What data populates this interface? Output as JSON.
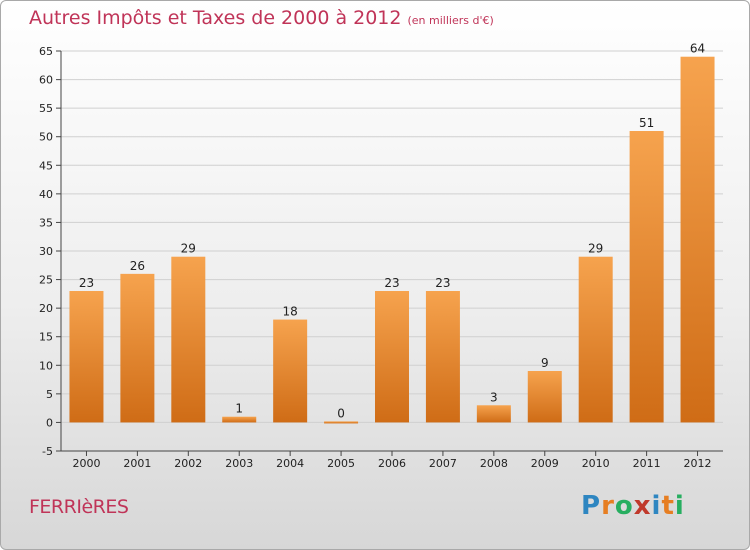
{
  "title": {
    "main": "Autres Impôts et Taxes de 2000 à 2012",
    "unit": "(en milliers d'€)"
  },
  "town": "FERRIèRES",
  "logo": {
    "letters": [
      "P",
      "r",
      "o",
      "x",
      "i",
      "t",
      "i"
    ],
    "colors": [
      "#2e86c1",
      "#e67e22",
      "#27ae60",
      "#c0392b",
      "#2e86c1",
      "#e67e22",
      "#27ae60"
    ]
  },
  "chart_data": {
    "type": "bar",
    "categories": [
      "2000",
      "2001",
      "2002",
      "2003",
      "2004",
      "2005",
      "2006",
      "2007",
      "2008",
      "2009",
      "2010",
      "2011",
      "2012"
    ],
    "values": [
      23,
      26,
      29,
      1,
      18,
      0,
      23,
      23,
      3,
      9,
      29,
      51,
      64
    ],
    "data_labels": [
      "23",
      "26",
      "29",
      "1",
      "18",
      "0",
      "23",
      "23",
      "3",
      "9",
      "29",
      "51",
      "64"
    ],
    "title": "Autres Impôts et Taxes de 2000 à 2012",
    "xlabel": "",
    "ylabel": "",
    "ylim": [
      -5,
      65
    ],
    "yticks": [
      -5,
      0,
      5,
      10,
      15,
      20,
      25,
      30,
      35,
      40,
      45,
      50,
      55,
      60,
      65
    ],
    "grid": true,
    "colors": {
      "bar_light": "#f6a34e",
      "bar_dark": "#cf6c16",
      "grid": "#d0d0d0",
      "axis": "#444444"
    }
  }
}
